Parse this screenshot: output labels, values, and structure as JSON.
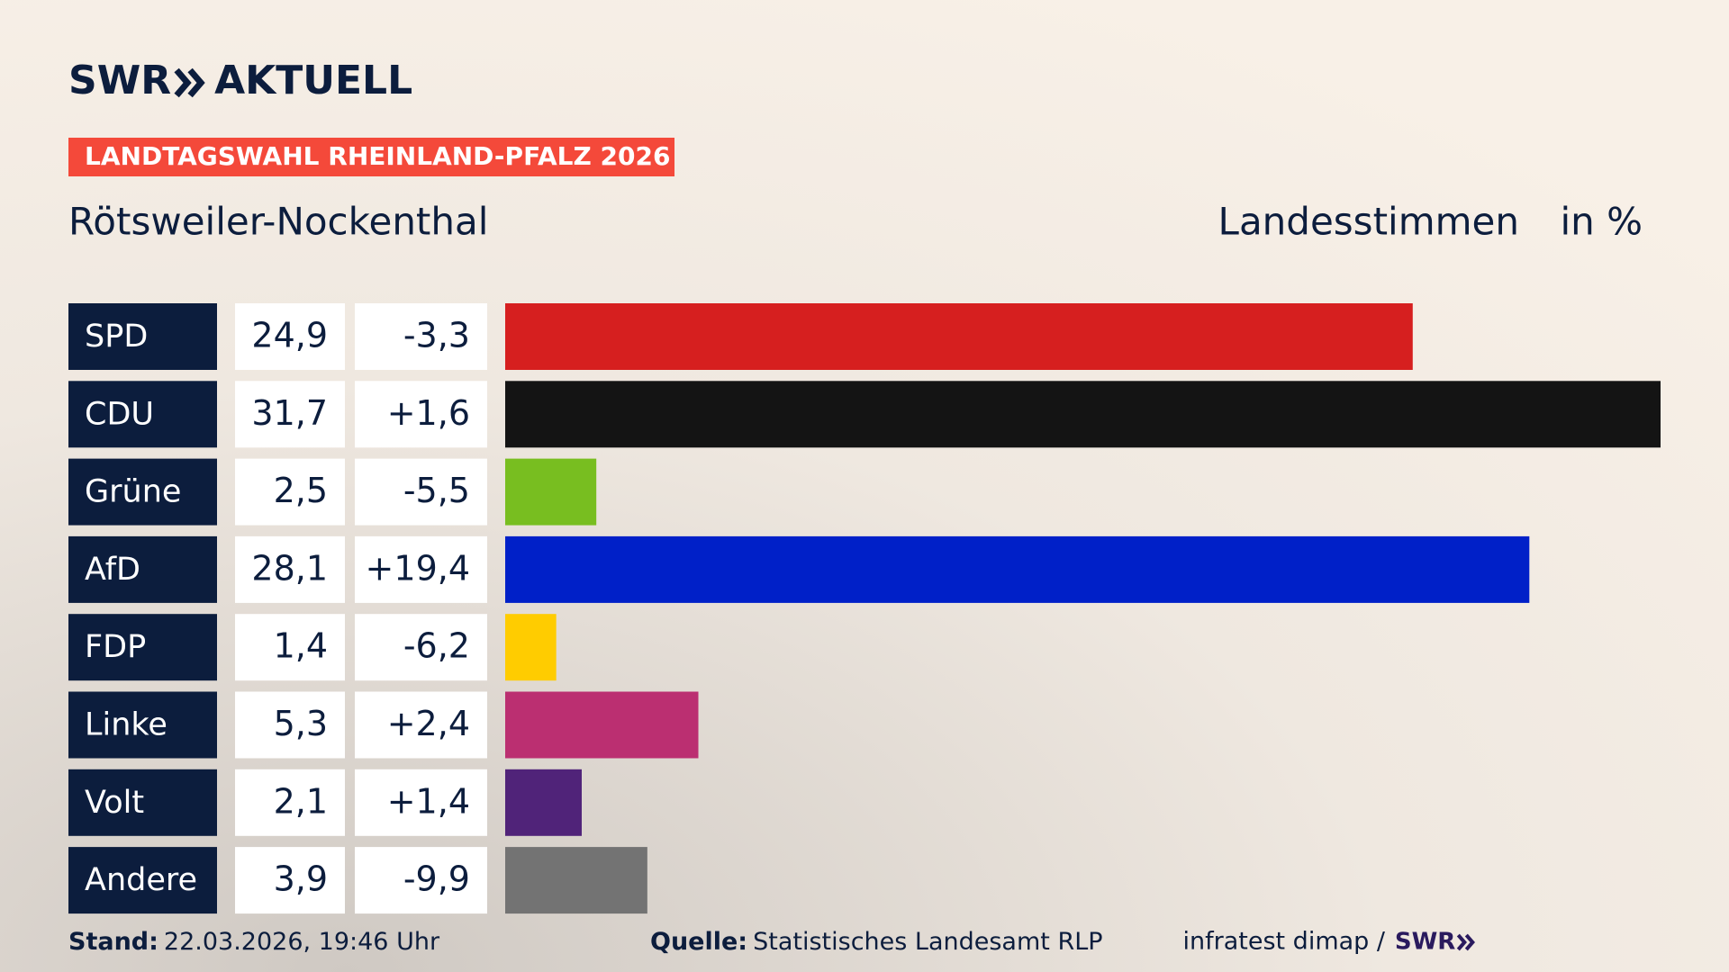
{
  "header": {
    "logo": "SWR",
    "section": "AKTUELL",
    "banner": "LANDTAGSWAHL RHEINLAND-PFALZ 2026"
  },
  "chart_data": {
    "type": "bar",
    "orientation": "horizontal",
    "title": "Rötsweiler-Nockenthal",
    "value_heading": "Landesstimmen",
    "unit_heading": "in %",
    "categories": [
      "SPD",
      "CDU",
      "Grüne",
      "AfD",
      "FDP",
      "Linke",
      "Volt",
      "Andere"
    ],
    "values": [
      24.9,
      31.7,
      2.5,
      28.1,
      1.4,
      5.3,
      2.1,
      3.9
    ],
    "value_labels": [
      "24,9",
      "31,7",
      "2,5",
      "28,1",
      "1,4",
      "5,3",
      "2,1",
      "3,9"
    ],
    "changes": [
      -3.3,
      1.6,
      -5.5,
      19.4,
      -6.2,
      2.4,
      1.4,
      -9.9
    ],
    "change_labels": [
      "-3,3",
      "+1,6",
      "-5,5",
      "+19,4",
      "-6,2",
      "+2,4",
      "+1,4",
      "-9,9"
    ],
    "colors": [
      "#d61f1f",
      "#141414",
      "#78be20",
      "#0020c8",
      "#ffcc00",
      "#bb2f71",
      "#502379",
      "#737373"
    ]
  },
  "footer": {
    "stand_label": "Stand:",
    "stand": "22.03.2026, 19:46 Uhr",
    "source_label": "Quelle:",
    "source": "Statistisches Landesamt RLP",
    "credit": "infratest dimap /",
    "credit_logo": "SWR"
  }
}
